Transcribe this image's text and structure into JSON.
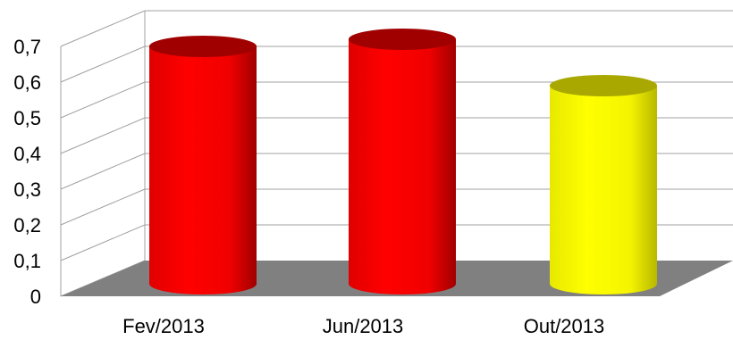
{
  "chart_data": {
    "type": "bar",
    "style": "3d-cylinder",
    "categories": [
      "Fev/2013",
      "Jun/2013",
      "Out/2013"
    ],
    "values": [
      0.67,
      0.69,
      0.56
    ],
    "bar_colors": [
      "#ff0000",
      "#ff0000",
      "#ffff00"
    ],
    "ylim": [
      0,
      0.7
    ],
    "yticks": [
      "0",
      "0,1",
      "0,2",
      "0,3",
      "0,4",
      "0,5",
      "0,6",
      "0,7"
    ],
    "grid": true,
    "legend": "none",
    "floor_color": "#808080"
  }
}
